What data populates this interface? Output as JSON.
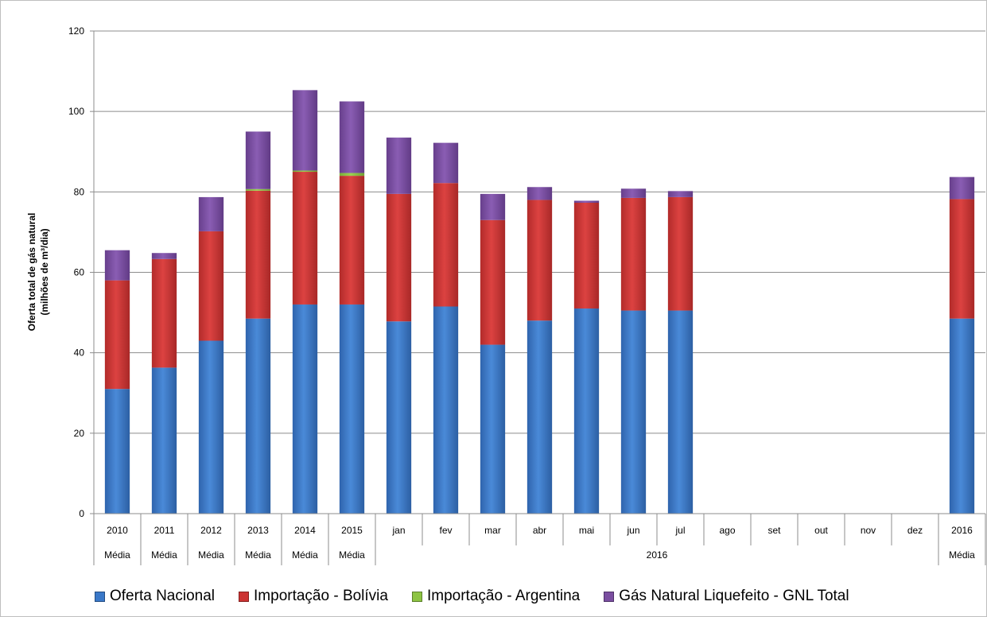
{
  "chart_data": {
    "type": "bar",
    "stacked": true,
    "categories": [
      "2010",
      "2011",
      "2012",
      "2013",
      "2014",
      "2015",
      "jan",
      "fev",
      "mar",
      "abr",
      "mai",
      "jun",
      "jul",
      "ago",
      "set",
      "out",
      "nov",
      "dez",
      "2016"
    ],
    "group_labels": [
      "Média",
      "Média",
      "Média",
      "Média",
      "Média",
      "Média",
      "2016",
      "Média"
    ],
    "ylabel_line1": "Oferta total  de gás natural",
    "ylabel_line2": "(milhões de m³/dia)",
    "ylim": [
      0,
      120
    ],
    "yticks": [
      0,
      20,
      40,
      60,
      80,
      100,
      120
    ],
    "grid": true,
    "legend_position": "bottom",
    "series": [
      {
        "name": "Oferta Nacional",
        "color": "#3a78c8",
        "values": [
          31,
          36.3,
          43,
          48.5,
          52,
          52,
          47.8,
          51.5,
          42,
          48,
          51,
          50.5,
          50.5,
          null,
          null,
          null,
          null,
          null,
          48.5
        ]
      },
      {
        "name": "Importação - Bolívia",
        "color": "#cc3332",
        "values": [
          27,
          27,
          27.2,
          31.8,
          33,
          32,
          31.7,
          30.7,
          31,
          30,
          26.3,
          28,
          28.2,
          null,
          null,
          null,
          null,
          null,
          29.7
        ]
      },
      {
        "name": "Importação - Argentina",
        "color": "#8dc443",
        "values": [
          0,
          0,
          0,
          0.4,
          0.3,
          0.7,
          0,
          0,
          0,
          0,
          0,
          0,
          0,
          null,
          null,
          null,
          null,
          null,
          0
        ]
      },
      {
        "name": "Gás Natural Liquefeito - GNL Total",
        "color": "#7a4ea0",
        "values": [
          7.5,
          1.5,
          8.5,
          14.3,
          20,
          17.8,
          14,
          10,
          6.5,
          3.2,
          0.5,
          2.3,
          1.5,
          null,
          null,
          null,
          null,
          null,
          5.5
        ]
      }
    ]
  }
}
